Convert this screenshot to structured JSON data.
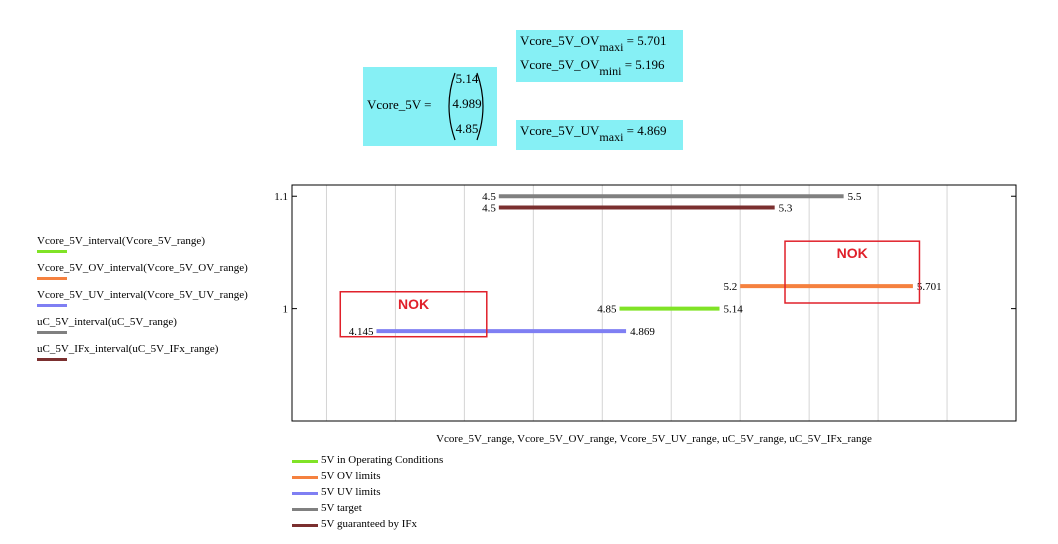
{
  "results": {
    "vector_name": "Vcore_5V =",
    "vector_values": [
      "5.14",
      "4.989",
      "4.85"
    ],
    "ov_maxi": {
      "name": "Vcore_5V_OV",
      "sub": "maxi",
      "value": "= 5.701"
    },
    "ov_mini": {
      "name": "Vcore_5V_OV",
      "sub": "mini",
      "value": "= 5.196"
    },
    "uv_maxi": {
      "name": "Vcore_5V_UV",
      "sub": "maxi",
      "value": "= 4.869"
    }
  },
  "chart_data": {
    "type": "line",
    "xlabel": "Vcore_5V_range, Vcore_5V_OV_range, Vcore_5V_UV_range, uC_5V_range, uC_5V_IFx_range",
    "ylabel": "",
    "xlim": [
      3.9,
      6.0
    ],
    "ylim": [
      0.9,
      1.11
    ],
    "y_ticks": [
      "1",
      "1.1"
    ],
    "grid": true,
    "series": [
      {
        "name": "5V in Operating Conditions",
        "color": "#80e326",
        "x": [
          4.85,
          5.14
        ],
        "y": 1.0,
        "labels": [
          "4.85",
          "5.14"
        ]
      },
      {
        "name": "5V OV limits",
        "color": "#f5813f",
        "x": [
          5.2,
          5.701
        ],
        "y": 1.02,
        "labels": [
          "5.2",
          "5.701"
        ]
      },
      {
        "name": "5V UV limits",
        "color": "#7f7ff3",
        "x": [
          4.145,
          4.869
        ],
        "y": 0.98,
        "labels": [
          "4.145",
          "4.869"
        ]
      },
      {
        "name": "5V target",
        "color": "#808080",
        "x": [
          4.5,
          5.5
        ],
        "y": 1.1,
        "labels": [
          "4.5",
          "5.5"
        ]
      },
      {
        "name": "5V guaranteed by IFx",
        "color": "#7b2f2f",
        "x": [
          4.5,
          5.3
        ],
        "y": 1.09,
        "labels": [
          "4.5",
          "5.3"
        ]
      }
    ],
    "annotations": [
      {
        "text": "NOK",
        "color": "#e0202a",
        "box": {
          "x": [
            4.04,
            4.465
          ],
          "y": [
            0.975,
            1.015
          ]
        }
      },
      {
        "text": "NOK",
        "color": "#e0202a",
        "box": {
          "x": [
            5.33,
            5.72
          ],
          "y": [
            1.005,
            1.06
          ]
        }
      }
    ],
    "legend_left": [
      {
        "text": "Vcore_5V_interval(Vcore_5V_range)",
        "color": "#80e326"
      },
      {
        "text": "Vcore_5V_OV_interval(Vcore_5V_OV_range)",
        "color": "#f5813f"
      },
      {
        "text": "Vcore_5V_UV_interval(Vcore_5V_UV_range)",
        "color": "#7f7ff3"
      },
      {
        "text": "uC_5V_interval(uC_5V_range)",
        "color": "#808080"
      },
      {
        "text": "uC_5V_IFx_interval(uC_5V_IFx_range)",
        "color": "#7b2f2f"
      }
    ],
    "legend_placement": "bottom-left"
  }
}
